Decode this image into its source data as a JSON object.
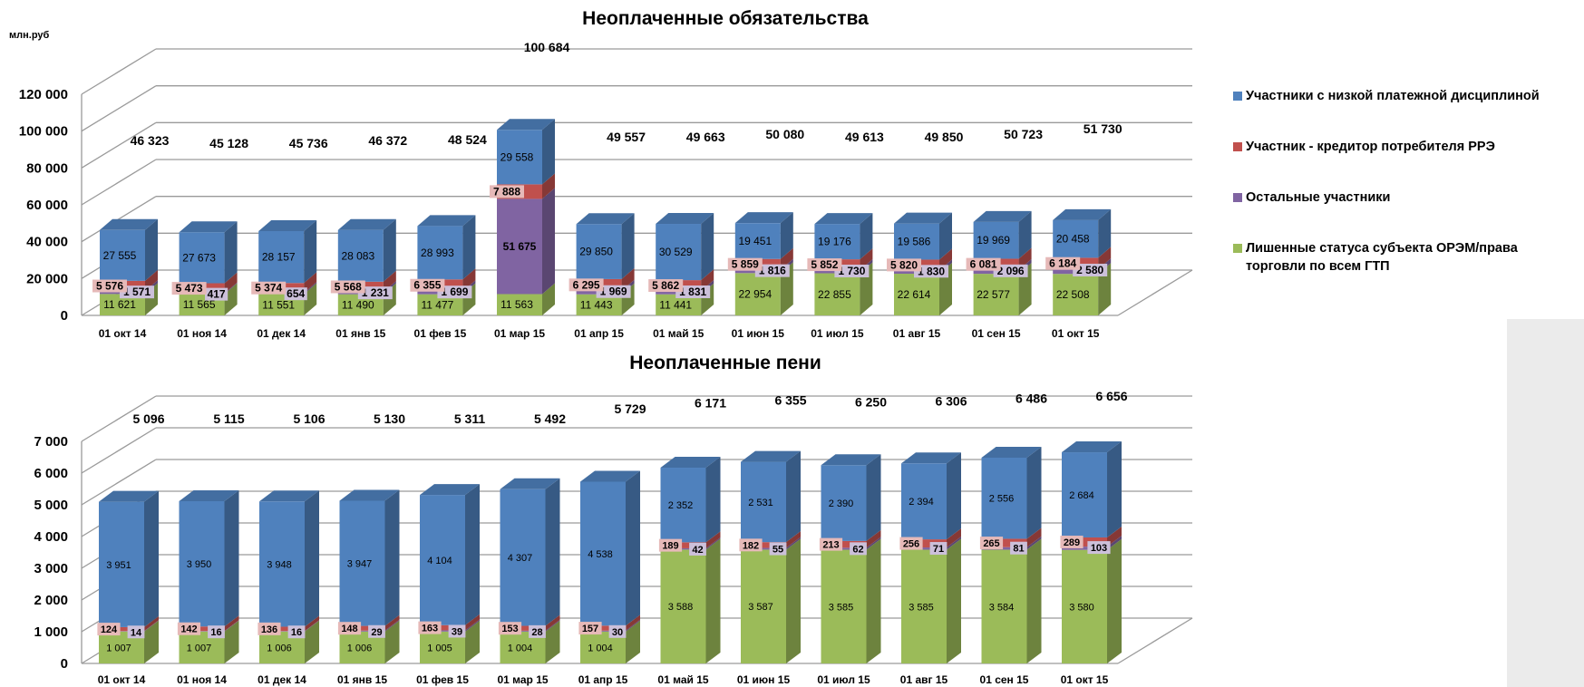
{
  "colors": {
    "blue": "#4f81bd",
    "red": "#c0504d",
    "purple": "#8064a2",
    "green": "#9bbb59",
    "label_pink": "#e6b9b8",
    "label_lilac": "#ccc0da"
  },
  "legend": [
    {
      "key": "low_discipline",
      "label": "Участники с низкой платежной дисциплиной",
      "color": "#4f81bd",
      "icon": "legend-square"
    },
    {
      "key": "creditor",
      "label": "Участник - кредитор потребителя РРЭ",
      "color": "#c0504d",
      "icon": "legend-square"
    },
    {
      "key": "others",
      "label": "Остальные участники",
      "color": "#8064a2",
      "icon": "legend-square"
    },
    {
      "key": "deprived",
      "label": "Лишенные статуса субъекта ОРЭМ/права торговли по всем ГТП",
      "color": "#9bbb59",
      "icon": "legend-square"
    }
  ],
  "chart_data": [
    {
      "type": "bar",
      "stacked": true,
      "style": "3d",
      "title": "Неоплаченные обязательства",
      "ylabel": "млн.руб",
      "ylim": [
        0,
        120000
      ],
      "yticks": [
        0,
        20000,
        40000,
        60000,
        80000,
        100000,
        120000
      ],
      "ytick_labels": [
        "0",
        "20 000",
        "40 000",
        "60 000",
        "80 000",
        "100 000",
        "120 000"
      ],
      "grid": true,
      "legend_position": "right",
      "categories": [
        "01 окт 14",
        "01 ноя 14",
        "01 дек 14",
        "01 янв 15",
        "01 фев 15",
        "01 мар 15",
        "01 апр 15",
        "01 май 15",
        "01 июн 15",
        "01 июл 15",
        "01 авг 15",
        "01 сен 15",
        "01 окт 15"
      ],
      "series": [
        {
          "name": "Лишенные статуса субъекта ОРЭМ/права торговли по всем ГТП",
          "values": [
            11621,
            11565,
            11551,
            11490,
            11477,
            11563,
            11443,
            11441,
            22954,
            22855,
            22614,
            22577,
            22508
          ]
        },
        {
          "name": "Остальные участники",
          "values": [
            1571,
            417,
            654,
            1231,
            1699,
            51675,
            1969,
            1831,
            1816,
            1730,
            1830,
            2096,
            2580
          ]
        },
        {
          "name": "Участник - кредитор потребителя РРЭ",
          "values": [
            5576,
            5473,
            5374,
            5568,
            6355,
            7888,
            6295,
            5862,
            5859,
            5852,
            5820,
            6081,
            6184
          ]
        },
        {
          "name": "Участники с низкой платежной дисциплиной",
          "values": [
            27555,
            27673,
            28157,
            28083,
            28993,
            29558,
            29850,
            30529,
            19451,
            19176,
            19586,
            19969,
            20458
          ]
        }
      ],
      "series_labels": [
        [
          "11 621",
          "11 565",
          "11 551",
          "11 490",
          "11 477",
          "11 563",
          "11 443",
          "11 441",
          "22 954",
          "22 855",
          "22 614",
          "22 577",
          "22 508"
        ],
        [
          "1 571",
          "417",
          "654",
          "1 231",
          "1 699",
          "51 675",
          "1 969",
          "1 831",
          "1 816",
          "1 730",
          "1 830",
          "2 096",
          "2 580"
        ],
        [
          "5 576",
          "5 473",
          "5 374",
          "5 568",
          "6 355",
          "7 888",
          "6 295",
          "5 862",
          "5 859",
          "5 852",
          "5 820",
          "6 081",
          "6 184"
        ],
        [
          "27 555",
          "27 673",
          "28 157",
          "28 083",
          "28 993",
          "29 558",
          "29 850",
          "30 529",
          "19 451",
          "19 176",
          "19 586",
          "19 969",
          "20 458"
        ]
      ],
      "totals": [
        46323,
        45128,
        45736,
        46372,
        48524,
        100684,
        49557,
        49663,
        50080,
        49613,
        49850,
        50723,
        51730
      ],
      "total_labels": [
        "46 323",
        "45 128",
        "45 736",
        "46 372",
        "48 524",
        "100 684",
        "49 557",
        "49 663",
        "50 080",
        "49 613",
        "49 850",
        "50 723",
        "51 730"
      ]
    },
    {
      "type": "bar",
      "stacked": true,
      "style": "3d",
      "title": "Неоплаченные пени",
      "ylim": [
        0,
        7000
      ],
      "yticks": [
        0,
        1000,
        2000,
        3000,
        4000,
        5000,
        6000,
        7000
      ],
      "ytick_labels": [
        "0",
        "1 000",
        "2 000",
        "3 000",
        "4 000",
        "5 000",
        "6 000",
        "7 000"
      ],
      "grid": true,
      "categories": [
        "01 окт 14",
        "01 ноя 14",
        "01 дек 14",
        "01 янв 15",
        "01 фев 15",
        "01 мар 15",
        "01 апр 15",
        "01 май 15",
        "01 июн 15",
        "01 июл 15",
        "01 авг 15",
        "01 сен 15",
        "01 окт 15"
      ],
      "series": [
        {
          "name": "Лишенные статуса субъекта ОРЭМ/права торговли по всем ГТП",
          "values": [
            1007,
            1007,
            1006,
            1006,
            1005,
            1004,
            1004,
            3588,
            3587,
            3585,
            3585,
            3584,
            3580
          ]
        },
        {
          "name": "Остальные участники",
          "values": [
            14,
            16,
            16,
            29,
            39,
            28,
            30,
            42,
            55,
            62,
            71,
            81,
            103
          ]
        },
        {
          "name": "Участник - кредитор потребителя РРЭ",
          "values": [
            124,
            142,
            136,
            148,
            163,
            153,
            157,
            189,
            182,
            213,
            256,
            265,
            289
          ]
        },
        {
          "name": "Участники с низкой платежной дисциплиной",
          "values": [
            3951,
            3950,
            3948,
            3947,
            4104,
            4307,
            4538,
            2352,
            2531,
            2390,
            2394,
            2556,
            2684
          ]
        }
      ],
      "series_labels": [
        [
          "1 007",
          "1 007",
          "1 006",
          "1 006",
          "1 005",
          "1 004",
          "1 004",
          "3 588",
          "3 587",
          "3 585",
          "3 585",
          "3 584",
          "3 580"
        ],
        [
          "14",
          "16",
          "16",
          "29",
          "39",
          "28",
          "30",
          "42",
          "55",
          "62",
          "71",
          "81",
          "103"
        ],
        [
          "124",
          "142",
          "136",
          "148",
          "163",
          "153",
          "157",
          "189",
          "182",
          "213",
          "256",
          "265",
          "289"
        ],
        [
          "3 951",
          "3 950",
          "3 948",
          "3 947",
          "4 104",
          "4 307",
          "4 538",
          "2 352",
          "2 531",
          "2 390",
          "2 394",
          "2 556",
          "2 684"
        ]
      ],
      "totals": [
        5096,
        5115,
        5106,
        5130,
        5311,
        5492,
        5729,
        6171,
        6355,
        6250,
        6306,
        6486,
        6656
      ],
      "total_labels": [
        "5 096",
        "5 115",
        "5 106",
        "5 130",
        "5 311",
        "5 492",
        "5 729",
        "6 171",
        "6 355",
        "6 250",
        "6 306",
        "6 486",
        "6 656"
      ]
    }
  ]
}
